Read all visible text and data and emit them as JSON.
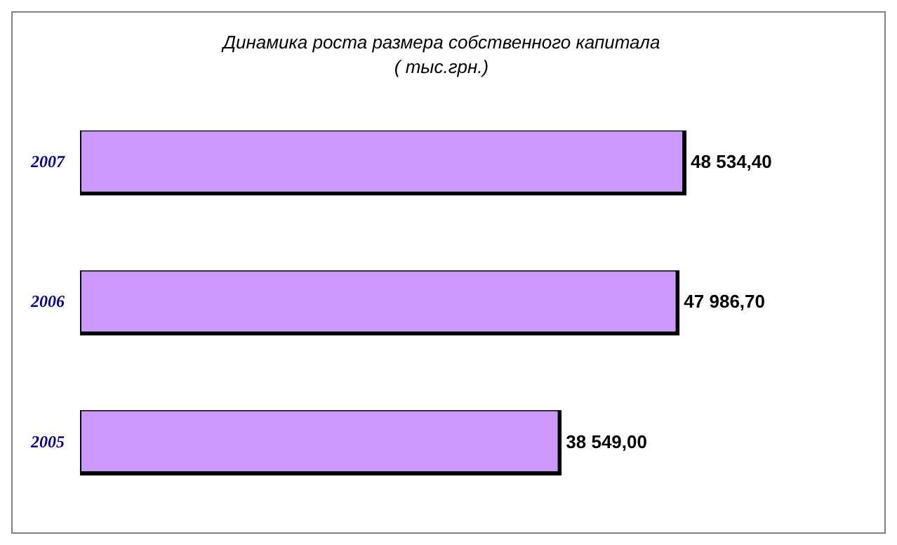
{
  "chart_data": {
    "type": "bar",
    "orientation": "horizontal",
    "title": "Динамика роста размера собственного капитала",
    "subtitle": "( тыс.грн.)",
    "categories": [
      "2007",
      "2006",
      "2005"
    ],
    "values": [
      48534.4,
      47986.7,
      38549
    ],
    "value_labels": [
      "48 534,40",
      "47 986,70",
      "38 549,00"
    ],
    "color": "#cc99ff"
  }
}
